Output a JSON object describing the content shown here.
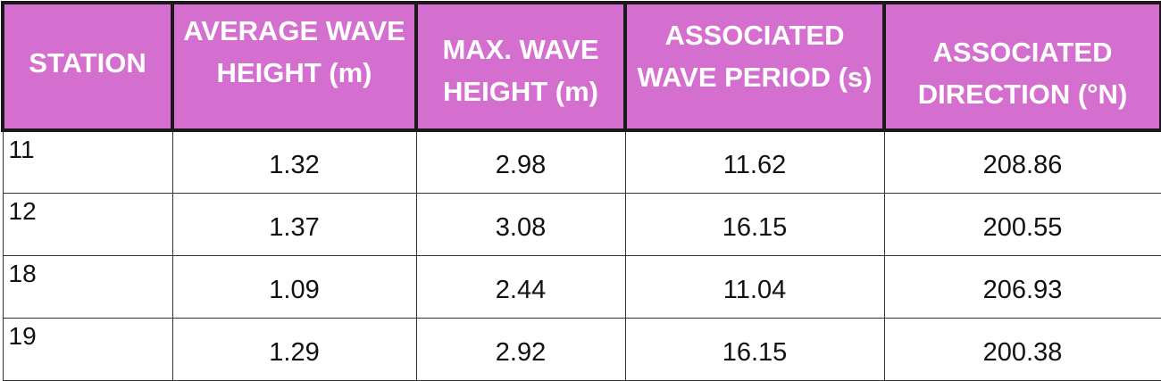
{
  "table": {
    "headers": [
      "STATION",
      "AVERAGE WAVE HEIGHT (m)",
      "MAX. WAVE HEIGHT (m)",
      "ASSOCIATED WAVE PERIOD (s)",
      "ASSOCIATED DIRECTION (°N)"
    ],
    "rows": [
      [
        "11",
        "1.32",
        "2.98",
        "11.62",
        "208.86"
      ],
      [
        "12",
        "1.37",
        "3.08",
        "16.15",
        "200.55"
      ],
      [
        "18",
        "1.09",
        "2.44",
        "11.04",
        "206.93"
      ],
      [
        "19",
        "1.29",
        "2.92",
        "16.15",
        "200.38"
      ]
    ]
  },
  "colors": {
    "header_background": "#d56fcf",
    "header_text": "#ffffff",
    "header_border": "#1a1a1a",
    "cell_border": "#333333"
  }
}
